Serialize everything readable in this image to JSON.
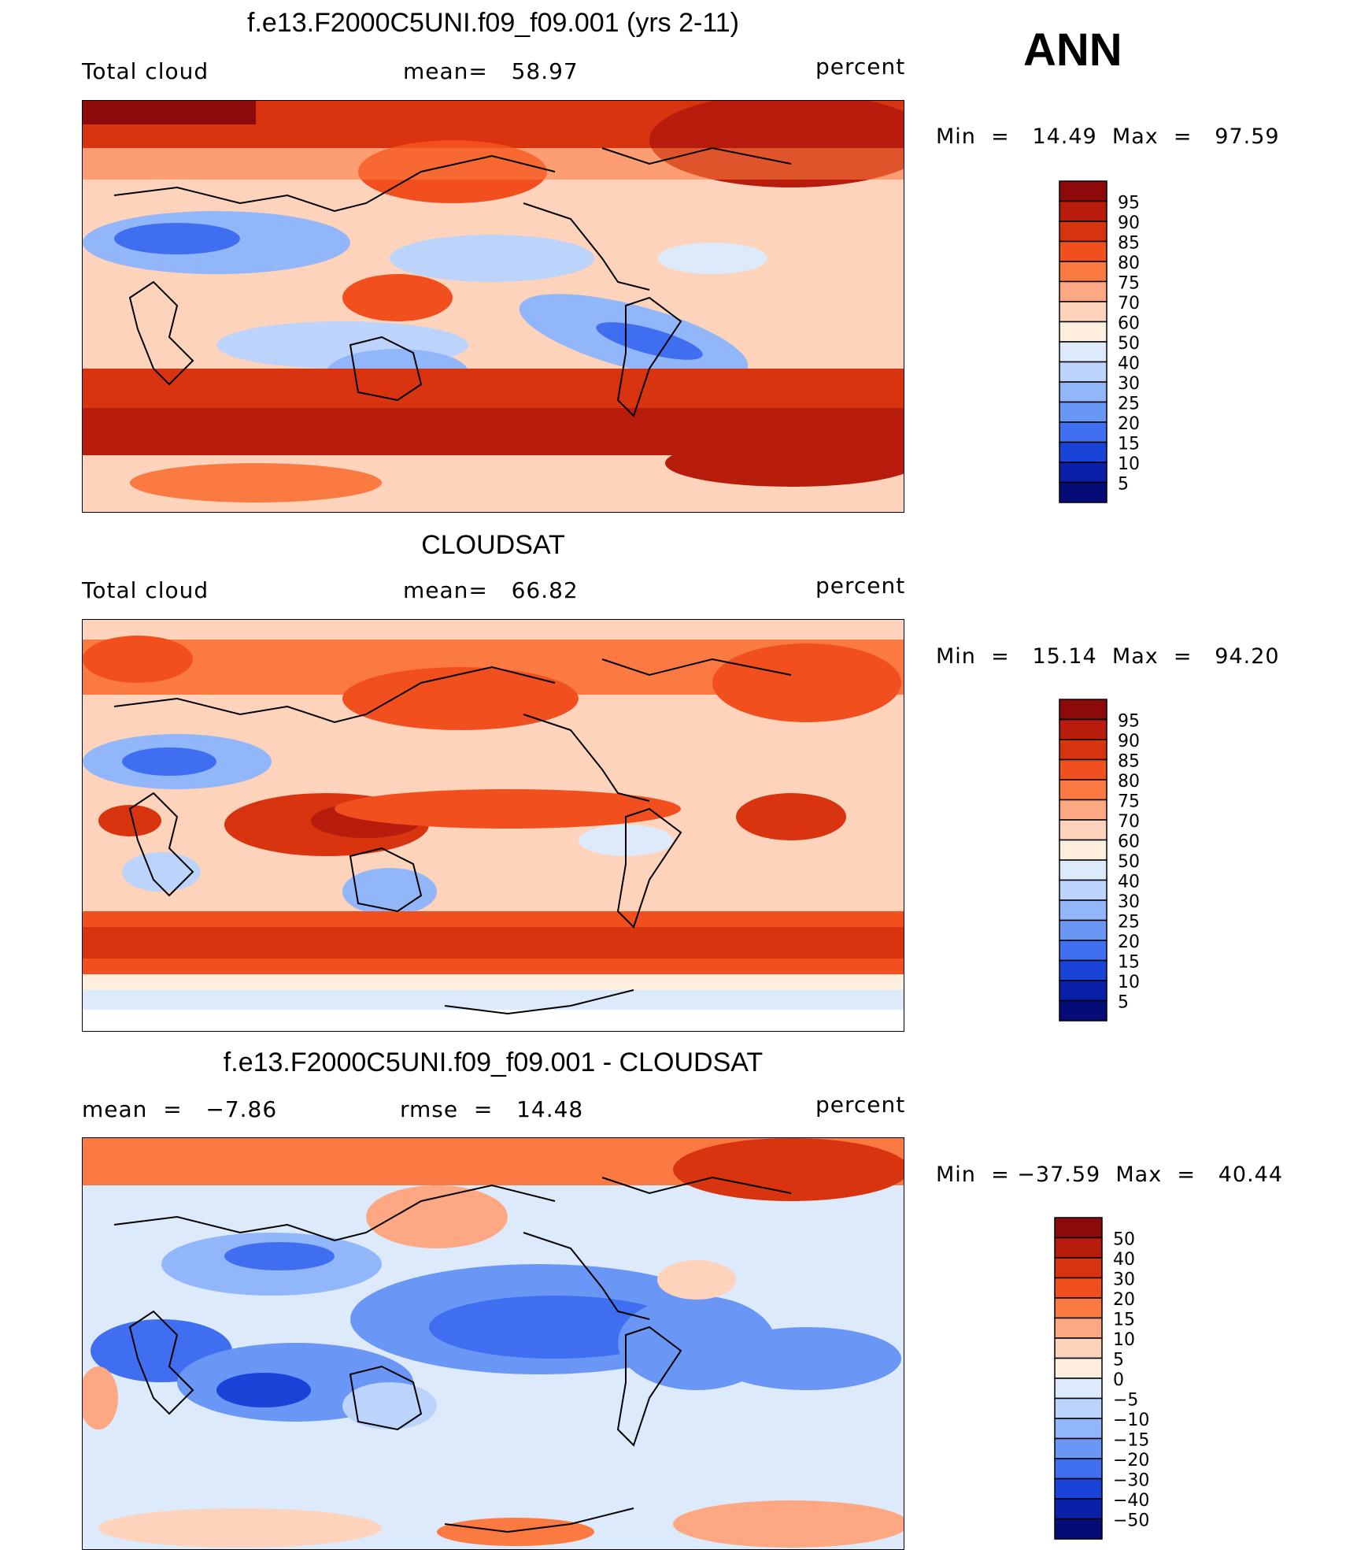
{
  "season": "ANN",
  "panels": [
    {
      "title": "f.e13.F2000C5UNI.f09_f09.001 (yrs 2-11)",
      "left_label": "Total cloud",
      "center_label": "mean=   58.97",
      "units": "percent",
      "minmax": "Min  =   14.49  Max  =   97.59",
      "colorbar_labels": [
        "95",
        "90",
        "85",
        "80",
        "75",
        "70",
        "60",
        "50",
        "40",
        "30",
        "25",
        "20",
        "15",
        "10",
        "5"
      ]
    },
    {
      "title": "CLOUDSAT",
      "left_label": "Total cloud",
      "center_label": "mean=   66.82",
      "units": "percent",
      "minmax": "Min  =   15.14  Max  =   94.20",
      "colorbar_labels": [
        "95",
        "90",
        "85",
        "80",
        "75",
        "70",
        "60",
        "50",
        "40",
        "30",
        "25",
        "20",
        "15",
        "10",
        "5"
      ]
    },
    {
      "title": "f.e13.F2000C5UNI.f09_f09.001 - CLOUDSAT",
      "left_label": "mean  =   −7.86",
      "center_label": "rmse  =   14.48",
      "units": "percent",
      "minmax": "Min  = −37.59  Max  =   40.44",
      "colorbar_labels": [
        "50",
        "40",
        "30",
        "20",
        "15",
        "10",
        "5",
        "0",
        "−5",
        "−10",
        "−15",
        "−20",
        "−30",
        "−40",
        "−50"
      ]
    }
  ],
  "colors": {
    "scale": [
      "#8c0a0a",
      "#b71c0c",
      "#d8340f",
      "#f14f1d",
      "#fb7a42",
      "#fda883",
      "#fdd3bc",
      "#fdeede",
      "#dceafb",
      "#bcd3fb",
      "#92b6fa",
      "#6a97f5",
      "#3f6ff0",
      "#1a43d8",
      "#0b20a8",
      "#050c78"
    ]
  },
  "chart_data": [
    {
      "type": "heatmap",
      "title": "f.e13.F2000C5UNI.f09_f09.001 (yrs 2-11)",
      "variable": "Total cloud",
      "units": "percent",
      "mean": 58.97,
      "min": 14.49,
      "max": 97.59,
      "levels": [
        5,
        10,
        15,
        20,
        25,
        30,
        40,
        50,
        60,
        70,
        75,
        80,
        85,
        90,
        95
      ]
    },
    {
      "type": "heatmap",
      "title": "CLOUDSAT",
      "variable": "Total cloud",
      "units": "percent",
      "mean": 66.82,
      "min": 15.14,
      "max": 94.2,
      "levels": [
        5,
        10,
        15,
        20,
        25,
        30,
        40,
        50,
        60,
        70,
        75,
        80,
        85,
        90,
        95
      ]
    },
    {
      "type": "heatmap",
      "title": "f.e13.F2000C5UNI.f09_f09.001 - CLOUDSAT",
      "units": "percent",
      "mean": -7.86,
      "rmse": 14.48,
      "min": -37.59,
      "max": 40.44,
      "levels": [
        -50,
        -40,
        -30,
        -20,
        -15,
        -10,
        -5,
        0,
        5,
        10,
        15,
        20,
        30,
        40,
        50
      ]
    }
  ]
}
